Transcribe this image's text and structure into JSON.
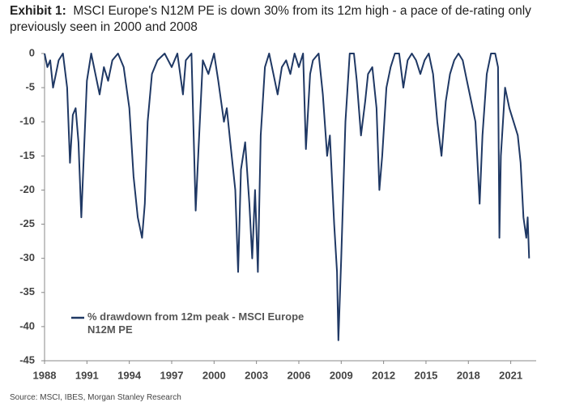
{
  "chart_data": {
    "type": "line",
    "title_label": "Exhibit 1:",
    "title": "MSCI Europe's N12M PE is down 30% from its 12m high - a pace of de-rating only previously seen in 2000 and 2008",
    "source": "Source: MSCI, IBES, Morgan Stanley Research",
    "x": [
      1988.0,
      1988.2,
      1988.4,
      1988.6,
      1988.8,
      1989.0,
      1989.3,
      1989.6,
      1989.8,
      1990.0,
      1990.2,
      1990.4,
      1990.6,
      1990.8,
      1991.0,
      1991.3,
      1991.6,
      1991.9,
      1992.2,
      1992.5,
      1992.8,
      1993.2,
      1993.6,
      1994.0,
      1994.3,
      1994.6,
      1994.9,
      1995.1,
      1995.3,
      1995.6,
      1996.0,
      1996.5,
      1997.0,
      1997.4,
      1997.8,
      1998.0,
      1998.4,
      1998.7,
      1998.9,
      1999.2,
      1999.6,
      2000.0,
      2000.3,
      2000.7,
      2000.9,
      2001.2,
      2001.5,
      2001.7,
      2001.9,
      2002.2,
      2002.5,
      2002.7,
      2002.9,
      2003.1,
      2003.3,
      2003.6,
      2003.9,
      2004.2,
      2004.5,
      2004.8,
      2005.1,
      2005.4,
      2005.7,
      2006.0,
      2006.3,
      2006.5,
      2006.8,
      2007.0,
      2007.4,
      2007.7,
      2008.0,
      2008.2,
      2008.5,
      2008.7,
      2008.8,
      2009.0,
      2009.3,
      2009.6,
      2009.9,
      2010.1,
      2010.4,
      2010.7,
      2010.9,
      2011.2,
      2011.5,
      2011.7,
      2011.9,
      2012.2,
      2012.5,
      2012.8,
      2013.1,
      2013.4,
      2013.7,
      2014.0,
      2014.3,
      2014.6,
      2014.9,
      2015.2,
      2015.5,
      2015.8,
      2016.1,
      2016.4,
      2016.7,
      2017.0,
      2017.3,
      2017.6,
      2017.9,
      2018.2,
      2018.5,
      2018.8,
      2019.0,
      2019.3,
      2019.6,
      2019.9,
      2020.1,
      2020.2,
      2020.3,
      2020.6,
      2020.9,
      2021.2,
      2021.5,
      2021.7,
      2021.9,
      2022.1,
      2022.2,
      2022.3
    ],
    "series": [
      {
        "name": "% drawdown from 12m peak - MSCI Europe N12M PE",
        "color": "#1f3864",
        "values": [
          0,
          -2,
          -1,
          -5,
          -3,
          -1,
          0,
          -5,
          -16,
          -9,
          -8,
          -13,
          -24,
          -14,
          -4,
          0,
          -3,
          -6,
          -2,
          -4,
          -1,
          0,
          -2,
          -8,
          -18,
          -24,
          -27,
          -22,
          -10,
          -3,
          -1,
          0,
          -2,
          0,
          -6,
          -1,
          0,
          -23,
          -14,
          -1,
          -3,
          0,
          -4,
          -10,
          -8,
          -14,
          -20,
          -32,
          -17,
          -13,
          -22,
          -30,
          -20,
          -32,
          -12,
          -2,
          0,
          -3,
          -6,
          -2,
          -1,
          -3,
          0,
          -2,
          0,
          -14,
          -3,
          -1,
          0,
          -6,
          -15,
          -12,
          -25,
          -32,
          -42,
          -30,
          -10,
          0,
          0,
          -4,
          -12,
          -7,
          -3,
          -2,
          -8,
          -20,
          -15,
          -5,
          -2,
          0,
          0,
          -5,
          -1,
          0,
          -1,
          -3,
          -1,
          0,
          -3,
          -10,
          -15,
          -7,
          -3,
          -1,
          0,
          -1,
          -4,
          -7,
          -10,
          -22,
          -12,
          -3,
          0,
          0,
          -2,
          -27,
          -15,
          -5,
          -8,
          -10,
          -12,
          -16,
          -24,
          -27,
          -24,
          -30
        ]
      }
    ],
    "xlim": [
      1988,
      2022.8
    ],
    "xticks": [
      1988,
      1991,
      1994,
      1997,
      2000,
      2003,
      2006,
      2009,
      2012,
      2015,
      2018,
      2021
    ],
    "ylim": [
      -45,
      0
    ],
    "yticks": [
      0,
      -5,
      -10,
      -15,
      -20,
      -25,
      -30,
      -35,
      -40,
      -45
    ],
    "grid": false
  }
}
